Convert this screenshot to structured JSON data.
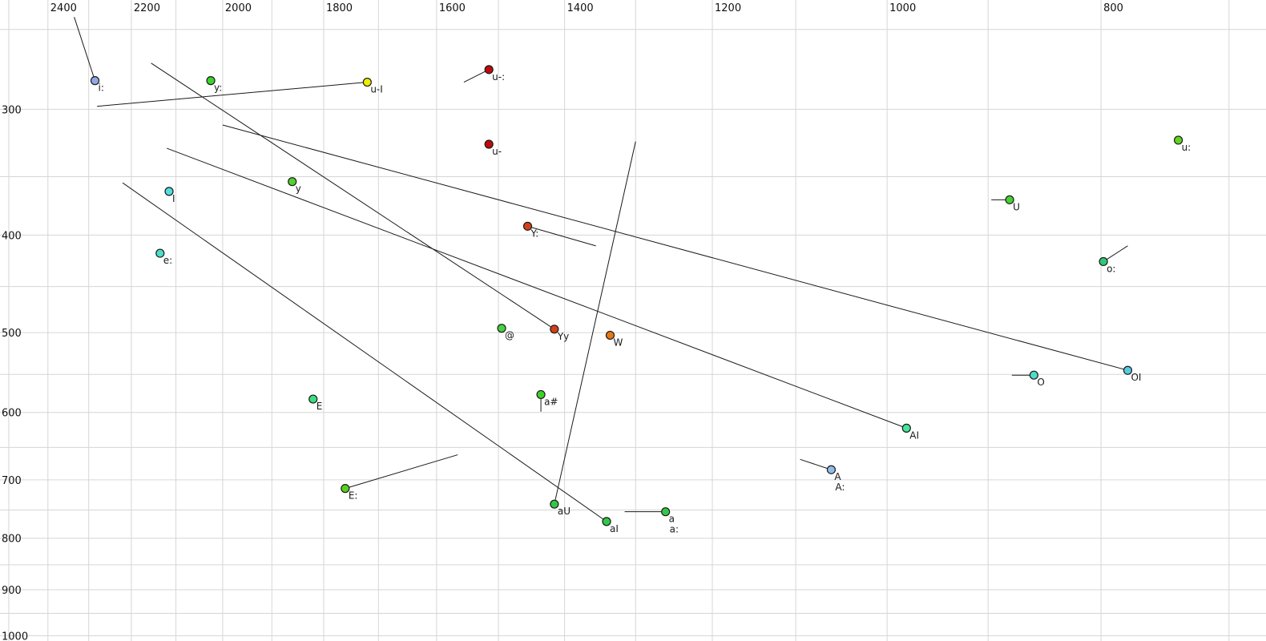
{
  "chart_data": {
    "type": "scatter",
    "title": "",
    "xlabel": "",
    "ylabel": "",
    "description": "Vowel formant plot: horizontal axis F2 (Hz) decreasing left-to-right on a log scale with ticks along the top; vertical axis F1 (Hz) increasing downward on a log scale with ticks along the left. Points are vowels (X-SAMPA labels); thin black lines are formant-trajectory tails.",
    "x_axis": {
      "position": "top",
      "scale": "log",
      "left_hz": 2523,
      "right_hz": 673.5,
      "tick_labels": [
        2400,
        2200,
        2000,
        1800,
        1600,
        1400,
        1200,
        1000,
        800
      ],
      "grid_min": 700,
      "grid_max": 2500,
      "grid_step": 100
    },
    "y_axis": {
      "position": "left",
      "scale": "log",
      "top_hz": 233.7,
      "bottom_hz": 1011.9,
      "tick_labels": [
        300,
        400,
        500,
        600,
        700,
        800,
        900,
        1000
      ],
      "grid_min": 250,
      "grid_max": 1000,
      "grid_step": 50
    },
    "points": [
      {
        "label": "i:",
        "f2": 2285,
        "f1": 281,
        "color": "#8FA9E6",
        "tail": {
          "f2": 2335,
          "f1": 243
        }
      },
      {
        "label": "y:",
        "f2": 2025,
        "f1": 281,
        "color": "#3BD42C",
        "tail": null
      },
      {
        "label": "u-I",
        "f2": 1720,
        "f1": 282,
        "color": "#EDED00",
        "tail": {
          "f2": 2280,
          "f1": 298
        }
      },
      {
        "label": "u-:",
        "f2": 1515,
        "f1": 274,
        "color": "#BE0A0A",
        "tail": {
          "f2": 1555,
          "f1": 282
        }
      },
      {
        "label": "u-",
        "f2": 1515,
        "f1": 325,
        "color": "#BE0A0A",
        "tail": null
      },
      {
        "label": "y",
        "f2": 1860,
        "f1": 354,
        "color": "#52D22E",
        "tail": null
      },
      {
        "label": "I",
        "f2": 2115,
        "f1": 362,
        "color": "#55DCDC",
        "tail": null
      },
      {
        "label": "e:",
        "f2": 2135,
        "f1": 417,
        "color": "#4FDCC8",
        "tail": null
      },
      {
        "label": "Y:",
        "f2": 1455,
        "f1": 392,
        "color": "#D2401A",
        "tail": {
          "f2": 1355,
          "f1": 410
        }
      },
      {
        "label": "@",
        "f2": 1495,
        "f1": 495,
        "color": "#46D23C",
        "tail": null
      },
      {
        "label": "Yy",
        "f2": 1415,
        "f1": 496,
        "color": "#D2401A",
        "tail": {
          "f2": 2155,
          "f1": 270
        }
      },
      {
        "label": "W",
        "f2": 1335,
        "f1": 503,
        "color": "#E67814",
        "tail": null
      },
      {
        "label": "a#",
        "f2": 1435,
        "f1": 576,
        "color": "#3CD228",
        "tail": {
          "f2": 1435,
          "f1": 599
        }
      },
      {
        "label": "E",
        "f2": 1820,
        "f1": 582,
        "color": "#3EDC82",
        "tail": null
      },
      {
        "label": "O",
        "f2": 858,
        "f1": 551,
        "color": "#4FDCC8",
        "tail": {
          "f2": 878,
          "f1": 551
        }
      },
      {
        "label": "OI",
        "f2": 778,
        "f1": 545,
        "color": "#55CCE0",
        "tail": {
          "f2": 2000,
          "f1": 311
        }
      },
      {
        "label": "o:",
        "f2": 798,
        "f1": 425,
        "color": "#32C878",
        "tail": {
          "f2": 778,
          "f1": 410
        }
      },
      {
        "label": "U",
        "f2": 880,
        "f1": 369,
        "color": "#46D232",
        "tail": {
          "f2": 897,
          "f1": 369
        }
      },
      {
        "label": "u:",
        "f2": 738,
        "f1": 322,
        "color": "#64D223",
        "tail": null
      },
      {
        "label": "AI",
        "f2": 980,
        "f1": 622,
        "color": "#46E69B",
        "tail": {
          "f2": 2120,
          "f1": 328
        }
      },
      {
        "label": "A",
        "label2": "A:",
        "f2": 1060,
        "f1": 684,
        "color": "#8FBEE8",
        "tail": {
          "f2": 1095,
          "f1": 668
        }
      },
      {
        "label": "E:",
        "f2": 1760,
        "f1": 714,
        "color": "#55D21E",
        "tail": {
          "f2": 1565,
          "f1": 661
        }
      },
      {
        "label": "aU",
        "f2": 1415,
        "f1": 740,
        "color": "#32C846",
        "tail": {
          "f2": 1300,
          "f1": 323
        }
      },
      {
        "label": "aI",
        "f2": 1340,
        "f1": 770,
        "color": "#32C846",
        "tail": {
          "f2": 2220,
          "f1": 355
        }
      },
      {
        "label": "a",
        "label2": "a:",
        "f2": 1260,
        "f1": 753,
        "color": "#32C846",
        "tail": {
          "f2": 1315,
          "f1": 753
        }
      }
    ],
    "style": {
      "background": "#ffffff",
      "grid_color": "#d6d6d6",
      "trail_color": "#1a1a1a",
      "point_border_color": "#1b1b1b",
      "point_radius": 5
    }
  }
}
